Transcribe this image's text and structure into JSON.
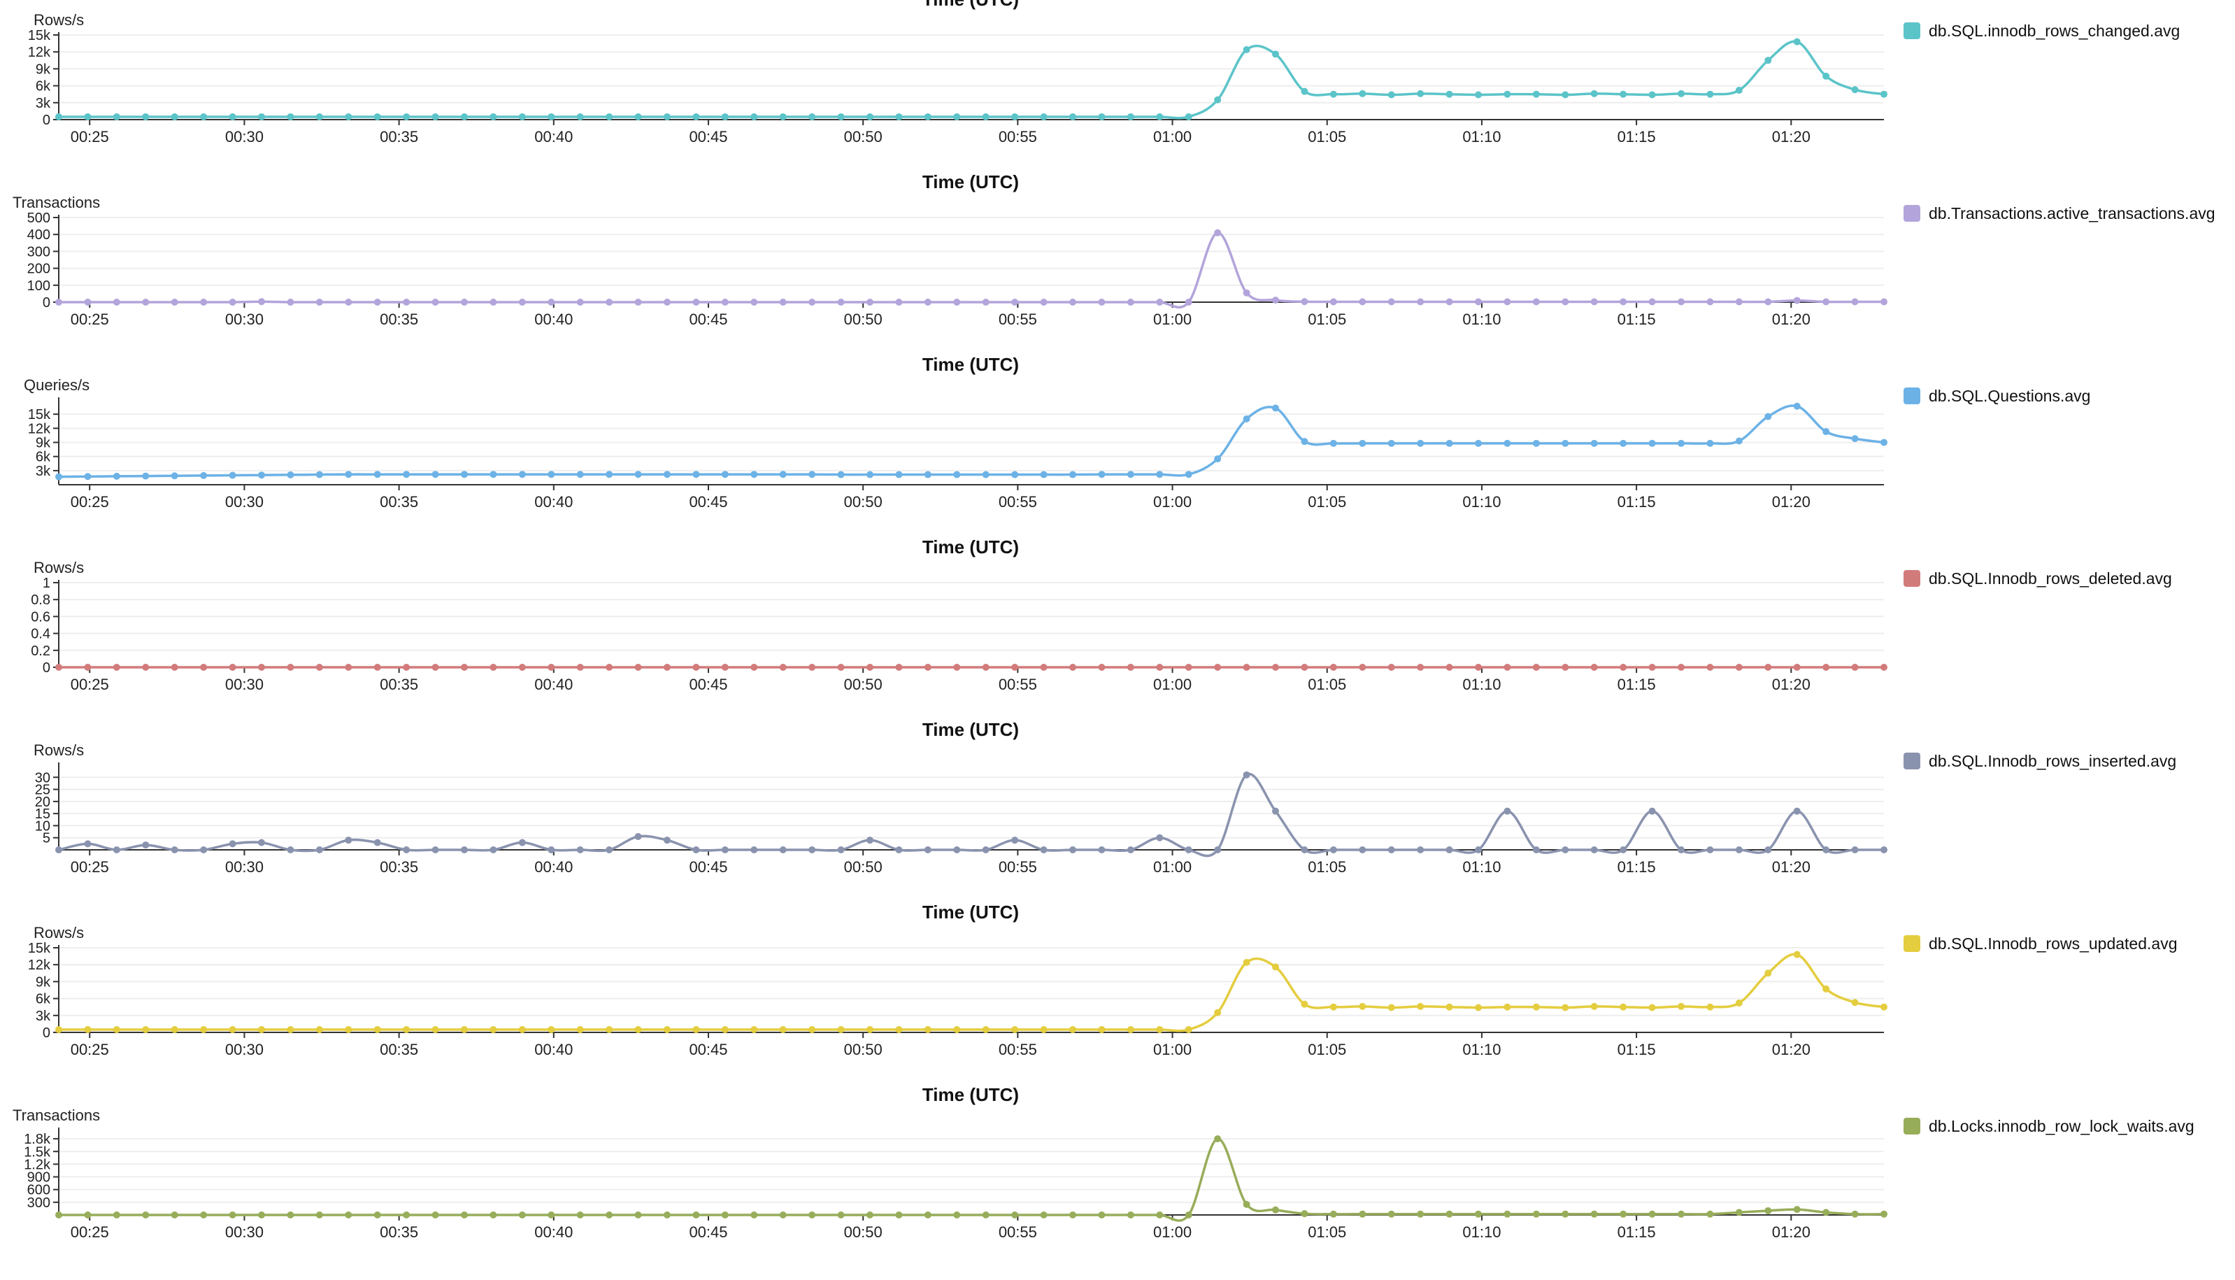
{
  "x_ticks": [
    "00:25",
    "00:30",
    "00:35",
    "00:40",
    "00:45",
    "00:50",
    "00:55",
    "01:00",
    "01:05",
    "01:10",
    "01:15",
    "01:20"
  ],
  "chart_data": [
    {
      "type": "line",
      "title": "Time (UTC)",
      "xlabel": "",
      "ylabel": "Rows/s",
      "ylim": [
        0,
        15000
      ],
      "y_ticks": [
        "0",
        "3k",
        "6k",
        "9k",
        "12k",
        "15k"
      ],
      "y_tick_values": [
        0,
        3000,
        6000,
        9000,
        12000,
        15000
      ],
      "x_ticks": [
        "00:25",
        "00:30",
        "00:35",
        "00:40",
        "00:45",
        "00:50",
        "00:55",
        "01:00",
        "01:05",
        "01:10",
        "01:15",
        "01:20"
      ],
      "series": [
        {
          "name": "db.SQL.innodb_rows_changed.avg",
          "color": "#5bc4c9",
          "values": [
            500,
            500,
            500,
            500,
            500,
            500,
            500,
            500,
            500,
            500,
            500,
            500,
            500,
            500,
            500,
            500,
            500,
            500,
            500,
            500,
            500,
            500,
            500,
            500,
            500,
            500,
            500,
            500,
            500,
            500,
            500,
            500,
            500,
            500,
            500,
            500,
            500,
            500,
            500,
            500,
            3500,
            12400,
            11600,
            5000,
            4500,
            4600,
            4400,
            4600,
            4500,
            4400,
            4500,
            4500,
            4400,
            4600,
            4500,
            4400,
            4600,
            4500,
            5200,
            10500,
            13800,
            7700,
            5300,
            4500
          ]
        }
      ]
    },
    {
      "type": "line",
      "title": "Time (UTC)",
      "xlabel": "",
      "ylabel": "Transactions",
      "ylim": [
        0,
        500
      ],
      "y_ticks": [
        "0",
        "100",
        "200",
        "300",
        "400",
        "500"
      ],
      "y_tick_values": [
        0,
        100,
        200,
        300,
        400,
        500
      ],
      "x_ticks": [
        "00:25",
        "00:30",
        "00:35",
        "00:40",
        "00:45",
        "00:50",
        "00:55",
        "01:00",
        "01:05",
        "01:10",
        "01:15",
        "01:20"
      ],
      "series": [
        {
          "name": "db.Transactions.active_transactions.avg",
          "color": "#b3a4db",
          "values": [
            0,
            0,
            0,
            0,
            0,
            0,
            0,
            3,
            0,
            0,
            0,
            0,
            0,
            0,
            0,
            0,
            0,
            0,
            0,
            0,
            0,
            0,
            0,
            0,
            0,
            0,
            0,
            0,
            0,
            0,
            0,
            0,
            0,
            0,
            0,
            0,
            0,
            0,
            0,
            0,
            410,
            55,
            12,
            3,
            2,
            2,
            2,
            2,
            2,
            2,
            2,
            2,
            2,
            2,
            2,
            2,
            2,
            2,
            2,
            2,
            10,
            2,
            2,
            2
          ]
        }
      ]
    },
    {
      "type": "line",
      "title": "Time (UTC)",
      "xlabel": "",
      "ylabel": "Queries/s",
      "ylim": [
        0,
        18000
      ],
      "y_ticks": [
        "3k",
        "6k",
        "9k",
        "12k",
        "15k"
      ],
      "y_tick_values": [
        3000,
        6000,
        9000,
        12000,
        15000
      ],
      "x_ticks": [
        "00:25",
        "00:30",
        "00:35",
        "00:40",
        "00:45",
        "00:50",
        "00:55",
        "01:00",
        "01:05",
        "01:10",
        "01:15",
        "01:20"
      ],
      "series": [
        {
          "name": "db.SQL.Questions.avg",
          "color": "#6cb2e6",
          "values": [
            1700,
            1750,
            1800,
            1850,
            1900,
            1950,
            2000,
            2050,
            2100,
            2150,
            2200,
            2200,
            2200,
            2200,
            2200,
            2200,
            2200,
            2200,
            2200,
            2200,
            2200,
            2200,
            2200,
            2200,
            2200,
            2200,
            2200,
            2150,
            2150,
            2150,
            2150,
            2150,
            2150,
            2150,
            2150,
            2150,
            2200,
            2200,
            2200,
            2200,
            5500,
            14000,
            16300,
            9200,
            8800,
            8800,
            8800,
            8800,
            8800,
            8800,
            8800,
            8800,
            8800,
            8800,
            8800,
            8800,
            8800,
            8800,
            9300,
            14500,
            16700,
            11300,
            9800,
            9000
          ]
        }
      ]
    },
    {
      "type": "line",
      "title": "Time (UTC)",
      "xlabel": "",
      "ylabel": "Rows/s",
      "ylim": [
        0,
        1
      ],
      "y_ticks": [
        "0",
        "0.2",
        "0.4",
        "0.6",
        "0.8",
        "1"
      ],
      "y_tick_values": [
        0,
        0.2,
        0.4,
        0.6,
        0.8,
        1
      ],
      "x_ticks": [
        "00:25",
        "00:30",
        "00:35",
        "00:40",
        "00:45",
        "00:50",
        "00:55",
        "01:00",
        "01:05",
        "01:10",
        "01:15",
        "01:20"
      ],
      "series": [
        {
          "name": "db.SQL.Innodb_rows_deleted.avg",
          "color": "#d27b7b",
          "values": [
            0,
            0,
            0,
            0,
            0,
            0,
            0,
            0,
            0,
            0,
            0,
            0,
            0,
            0,
            0,
            0,
            0,
            0,
            0,
            0,
            0,
            0,
            0,
            0,
            0,
            0,
            0,
            0,
            0,
            0,
            0,
            0,
            0,
            0,
            0,
            0,
            0,
            0,
            0,
            0,
            0,
            0,
            0,
            0,
            0,
            0,
            0,
            0,
            0,
            0,
            0,
            0,
            0,
            0,
            0,
            0,
            0,
            0,
            0,
            0,
            0,
            0,
            0,
            0
          ]
        }
      ]
    },
    {
      "type": "line",
      "title": "Time (UTC)",
      "xlabel": "",
      "ylabel": "Rows/s",
      "ylim": [
        0,
        35
      ],
      "y_ticks": [
        "5",
        "10",
        "15",
        "20",
        "25",
        "30"
      ],
      "y_tick_values": [
        5,
        10,
        15,
        20,
        25,
        30
      ],
      "x_ticks": [
        "00:25",
        "00:30",
        "00:35",
        "00:40",
        "00:45",
        "00:50",
        "00:55",
        "01:00",
        "01:05",
        "01:10",
        "01:15",
        "01:20"
      ],
      "series": [
        {
          "name": "db.SQL.Innodb_rows_inserted.avg",
          "color": "#8a93ae",
          "values": [
            0,
            2.5,
            0,
            2,
            0,
            0,
            2.5,
            3,
            0,
            0,
            4,
            3,
            0,
            0,
            0,
            0,
            3,
            0,
            0,
            0,
            5.5,
            4,
            0,
            0,
            0,
            0,
            0,
            0,
            4,
            0,
            0,
            0,
            0,
            4,
            0,
            0,
            0,
            0,
            5,
            0,
            0,
            31,
            16,
            0,
            0,
            0,
            0,
            0,
            0,
            0,
            16,
            0,
            0,
            0,
            0,
            16,
            0,
            0,
            0,
            0,
            16,
            0,
            0,
            0
          ]
        }
      ]
    },
    {
      "type": "line",
      "title": "Time (UTC)",
      "xlabel": "",
      "ylabel": "Rows/s",
      "ylim": [
        0,
        15000
      ],
      "y_ticks": [
        "0",
        "3k",
        "6k",
        "9k",
        "12k",
        "15k"
      ],
      "y_tick_values": [
        0,
        3000,
        6000,
        9000,
        12000,
        15000
      ],
      "x_ticks": [
        "00:25",
        "00:30",
        "00:35",
        "00:40",
        "00:45",
        "00:50",
        "00:55",
        "01:00",
        "01:05",
        "01:10",
        "01:15",
        "01:20"
      ],
      "series": [
        {
          "name": "db.SQL.Innodb_rows_updated.avg",
          "color": "#e4cd3f",
          "values": [
            500,
            500,
            500,
            500,
            500,
            500,
            500,
            500,
            500,
            500,
            500,
            500,
            500,
            500,
            500,
            500,
            500,
            500,
            500,
            500,
            500,
            500,
            500,
            500,
            500,
            500,
            500,
            500,
            500,
            500,
            500,
            500,
            500,
            500,
            500,
            500,
            500,
            500,
            500,
            500,
            3500,
            12400,
            11600,
            5000,
            4500,
            4600,
            4400,
            4600,
            4500,
            4400,
            4500,
            4500,
            4400,
            4600,
            4500,
            4400,
            4600,
            4500,
            5200,
            10500,
            13800,
            7700,
            5300,
            4500
          ]
        }
      ]
    },
    {
      "type": "line",
      "title": "Time (UTC)",
      "xlabel": "",
      "ylabel": "Transactions",
      "ylim": [
        0,
        2000
      ],
      "y_ticks": [
        "300",
        "600",
        "900",
        "1.2k",
        "1.5k",
        "1.8k"
      ],
      "y_tick_values": [
        300,
        600,
        900,
        1200,
        1500,
        1800
      ],
      "x_ticks": [
        "00:25",
        "00:30",
        "00:35",
        "00:40",
        "00:45",
        "00:50",
        "00:55",
        "01:00",
        "01:05",
        "01:10",
        "01:15",
        "01:20"
      ],
      "series": [
        {
          "name": "db.Locks.innodb_row_lock_waits.avg",
          "color": "#97ad5a",
          "values": [
            0,
            0,
            0,
            0,
            0,
            0,
            0,
            0,
            0,
            0,
            0,
            0,
            0,
            0,
            0,
            0,
            0,
            0,
            0,
            0,
            0,
            0,
            0,
            0,
            0,
            0,
            0,
            0,
            0,
            0,
            0,
            0,
            0,
            0,
            0,
            0,
            0,
            0,
            0,
            0,
            1800,
            250,
            120,
            30,
            20,
            20,
            20,
            20,
            20,
            20,
            20,
            20,
            20,
            20,
            20,
            20,
            20,
            20,
            60,
            100,
            130,
            60,
            20,
            20
          ]
        }
      ]
    }
  ]
}
